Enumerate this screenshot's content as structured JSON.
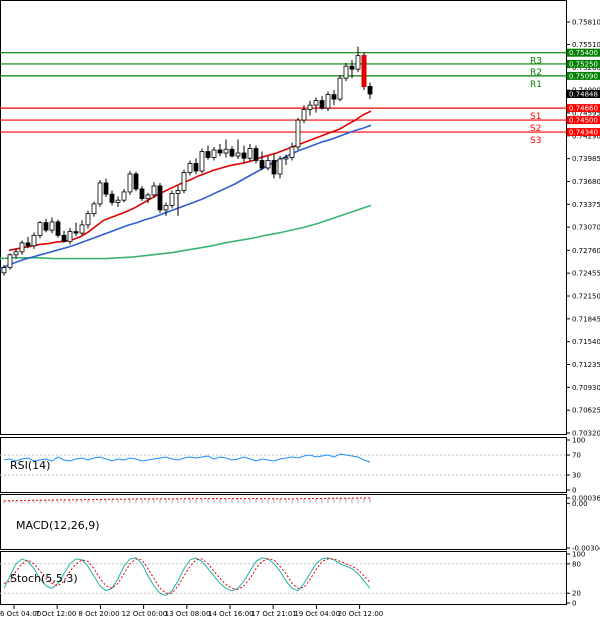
{
  "chart_data": [
    {
      "type": "candlestick",
      "panel": "price",
      "ylim": [
        0.7032,
        0.7581
      ],
      "y_ticks": [
        "0.75810",
        "0.75510",
        "0.75200",
        "0.74900",
        "0.74595",
        "0.74290",
        "0.73985",
        "0.73680",
        "0.73375",
        "0.73070",
        "0.72760",
        "0.72455",
        "0.72150",
        "0.71845",
        "0.71540",
        "0.71235",
        "0.70930",
        "0.70625",
        "0.70320"
      ],
      "levels": [
        {
          "name": "R3",
          "value": 0.754,
          "tag": "0.75400",
          "color": "#008000"
        },
        {
          "name": "R2",
          "value": 0.7525,
          "tag": "0.75250",
          "color": "#008000"
        },
        {
          "name": "R1",
          "value": 0.7509,
          "tag": "0.75090",
          "color": "#008000"
        },
        {
          "name": "S1",
          "value": 0.7466,
          "tag": "0.74660",
          "color": "#ff0000"
        },
        {
          "name": "S2",
          "value": 0.745,
          "tag": "0.74500",
          "color": "#ff0000"
        },
        {
          "name": "S3",
          "value": 0.7434,
          "tag": "0.74340",
          "color": "#ff0000"
        }
      ],
      "current_price": {
        "value": 0.74848,
        "tag": "0.74848"
      },
      "candles": [
        [
          0.7246,
          0.7256,
          0.7242,
          0.7253
        ],
        [
          0.7253,
          0.7272,
          0.725,
          0.727
        ],
        [
          0.727,
          0.7278,
          0.7265,
          0.7274
        ],
        [
          0.7274,
          0.7289,
          0.727,
          0.7286
        ],
        [
          0.7286,
          0.7294,
          0.7279,
          0.7282
        ],
        [
          0.7282,
          0.73,
          0.7278,
          0.7296
        ],
        [
          0.7296,
          0.7315,
          0.7292,
          0.7313
        ],
        [
          0.7313,
          0.7318,
          0.73,
          0.7303
        ],
        [
          0.7303,
          0.732,
          0.7299,
          0.7314
        ],
        [
          0.7314,
          0.7317,
          0.7293,
          0.7296
        ],
        [
          0.7296,
          0.7302,
          0.7286,
          0.7288
        ],
        [
          0.7288,
          0.7306,
          0.7284,
          0.7301
        ],
        [
          0.7301,
          0.7313,
          0.7295,
          0.7299
        ],
        [
          0.7299,
          0.7316,
          0.7296,
          0.731
        ],
        [
          0.731,
          0.7329,
          0.7305,
          0.7325
        ],
        [
          0.7325,
          0.7341,
          0.7321,
          0.7338
        ],
        [
          0.7338,
          0.737,
          0.7334,
          0.7366
        ],
        [
          0.7366,
          0.7372,
          0.7347,
          0.7351
        ],
        [
          0.7351,
          0.7356,
          0.7336,
          0.734
        ],
        [
          0.734,
          0.7348,
          0.7334,
          0.7343
        ],
        [
          0.7343,
          0.7358,
          0.734,
          0.7354
        ],
        [
          0.7354,
          0.7382,
          0.735,
          0.7378
        ],
        [
          0.7378,
          0.7381,
          0.7355,
          0.7358
        ],
        [
          0.7358,
          0.7362,
          0.7342,
          0.7345
        ],
        [
          0.7345,
          0.7353,
          0.7339,
          0.735
        ],
        [
          0.735,
          0.7367,
          0.7346,
          0.7362
        ],
        [
          0.7362,
          0.7366,
          0.7326,
          0.733
        ],
        [
          0.733,
          0.734,
          0.7322,
          0.7336
        ],
        [
          0.7336,
          0.7356,
          0.7332,
          0.7352
        ],
        [
          0.7352,
          0.7362,
          0.7322,
          0.7356
        ],
        [
          0.7356,
          0.7384,
          0.7352,
          0.738
        ],
        [
          0.738,
          0.7396,
          0.7376,
          0.7392
        ],
        [
          0.7392,
          0.7399,
          0.7378,
          0.7382
        ],
        [
          0.7382,
          0.7412,
          0.7379,
          0.7408
        ],
        [
          0.7408,
          0.7416,
          0.7397,
          0.74
        ],
        [
          0.74,
          0.7414,
          0.7396,
          0.741
        ],
        [
          0.741,
          0.7418,
          0.7402,
          0.7406
        ],
        [
          0.7406,
          0.7424,
          0.74,
          0.7411
        ],
        [
          0.7411,
          0.7415,
          0.74,
          0.7402
        ],
        [
          0.7402,
          0.7424,
          0.7398,
          0.7406
        ],
        [
          0.7406,
          0.7416,
          0.7393,
          0.7399
        ],
        [
          0.7399,
          0.7418,
          0.7395,
          0.7412
        ],
        [
          0.7412,
          0.7416,
          0.7392,
          0.7396
        ],
        [
          0.7396,
          0.7408,
          0.7383,
          0.7386
        ],
        [
          0.7386,
          0.7402,
          0.7383,
          0.7396
        ],
        [
          0.7396,
          0.7404,
          0.7372,
          0.7378
        ],
        [
          0.7378,
          0.7402,
          0.7372,
          0.7398
        ],
        [
          0.7398,
          0.7404,
          0.739,
          0.74
        ],
        [
          0.74,
          0.742,
          0.7396,
          0.7414
        ],
        [
          0.7414,
          0.7453,
          0.741,
          0.745
        ],
        [
          0.745,
          0.747,
          0.7446,
          0.7464
        ],
        [
          0.7464,
          0.7476,
          0.7456,
          0.747
        ],
        [
          0.747,
          0.748,
          0.746,
          0.7476
        ],
        [
          0.7476,
          0.7482,
          0.7464,
          0.7466
        ],
        [
          0.7466,
          0.7488,
          0.7462,
          0.7484
        ],
        [
          0.7484,
          0.749,
          0.747,
          0.7478
        ],
        [
          0.7478,
          0.751,
          0.7475,
          0.7506
        ],
        [
          0.7506,
          0.7526,
          0.7502,
          0.7522
        ],
        [
          0.7522,
          0.753,
          0.7506,
          0.7518
        ],
        [
          0.7518,
          0.7548,
          0.7514,
          0.7536
        ],
        [
          0.7536,
          0.754,
          0.749,
          0.7495
        ],
        [
          0.7495,
          0.75,
          0.7478,
          0.74848
        ]
      ],
      "ma_red": [
        0.7276,
        0.7278,
        0.728,
        0.7282,
        0.7284,
        0.7285,
        0.7287,
        0.7288,
        0.729,
        0.7294,
        0.73,
        0.7308,
        0.7316,
        0.732,
        0.7324,
        0.7328,
        0.7333,
        0.7339,
        0.7345,
        0.7351,
        0.7356,
        0.7361,
        0.7366,
        0.737,
        0.7375,
        0.7379,
        0.7383,
        0.7386,
        0.7389,
        0.7391,
        0.7393,
        0.7396,
        0.74,
        0.7403,
        0.7406,
        0.741,
        0.7414,
        0.7418,
        0.7422,
        0.7426,
        0.743,
        0.7434,
        0.7438,
        0.7444,
        0.745,
        0.7457,
        0.7462
      ],
      "ma_red_start": 1,
      "ma_blue": [
        0.7251,
        0.7256,
        0.726,
        0.7264,
        0.7267,
        0.727,
        0.7273,
        0.7276,
        0.7279,
        0.7282,
        0.7286,
        0.729,
        0.7294,
        0.7298,
        0.7302,
        0.7306,
        0.731,
        0.7313,
        0.7317,
        0.732,
        0.7324,
        0.7328,
        0.7332,
        0.7336,
        0.734,
        0.7344,
        0.7349,
        0.7354,
        0.7359,
        0.7364,
        0.737,
        0.7376,
        0.7382,
        0.7388,
        0.7394,
        0.7399,
        0.7404,
        0.7409,
        0.7413,
        0.7417,
        0.7421,
        0.7424,
        0.7428,
        0.7432,
        0.7436,
        0.7439,
        0.7443
      ],
      "ma_blue_start": 1,
      "ma_green": [
        0.7265,
        0.7266,
        0.7266,
        0.7266,
        0.7265,
        0.7265,
        0.7265,
        0.7265,
        0.7265,
        0.7266,
        0.7267,
        0.7269,
        0.7271,
        0.7273,
        0.7276,
        0.7279,
        0.7282,
        0.7286,
        0.7289,
        0.7292,
        0.7296,
        0.7299,
        0.7303,
        0.7307,
        0.7312,
        0.7318,
        0.7324,
        0.733,
        0.7336
      ],
      "ma_green_start": 1
    },
    {
      "type": "line",
      "panel": "rsi",
      "label": "RSI(14)",
      "ylim": [
        0,
        100
      ],
      "y_ticks": [
        "100",
        "70",
        "30",
        "0"
      ],
      "values": [
        60,
        62,
        58,
        62,
        64,
        58,
        60,
        62,
        58,
        66,
        60,
        58,
        62,
        64,
        60,
        64,
        66,
        62,
        58,
        62,
        60,
        64,
        62,
        58,
        60,
        62,
        64,
        66,
        62,
        60,
        64,
        66,
        64,
        66,
        68,
        62,
        66,
        64,
        60,
        62,
        66,
        62,
        58,
        62,
        60,
        58,
        62,
        64,
        66,
        64,
        68,
        70,
        66,
        68,
        70,
        66,
        72,
        70,
        68,
        66,
        60,
        56
      ]
    },
    {
      "type": "bar",
      "panel": "macd",
      "label": "MACD(12,26,9)",
      "ylim": [
        -0.003046,
        0.000361
      ],
      "y_ticks": [
        "0.000361",
        "0.00",
        "-0.003046"
      ],
      "values": [
        0.00018,
        0.00019,
        0.0002,
        0.00021,
        0.00022,
        0.00022,
        0.00023,
        0.00024,
        0.00024,
        0.00024,
        0.00024,
        0.00025,
        0.00026,
        0.00026,
        0.00027,
        0.00027,
        0.00028,
        0.00029,
        0.00029,
        0.0003,
        0.0003,
        0.00031,
        0.00031,
        0.00031,
        0.00031,
        0.00032,
        0.00031,
        0.00031,
        0.00031,
        0.00032,
        0.00032,
        0.00033,
        0.00032,
        0.00033,
        0.00033,
        0.00033,
        0.00033,
        0.00033,
        0.00033,
        0.00033,
        0.00032,
        0.00032,
        0.00032,
        0.00031,
        0.00031,
        0.00031,
        0.0003,
        0.0003,
        0.00031,
        0.00032,
        0.00033,
        0.00034,
        0.00034,
        0.00034,
        0.00035,
        0.00035,
        0.00036,
        0.00036,
        0.00036,
        0.00036,
        0.00036,
        0.00035
      ],
      "signal": [
        0.00016,
        0.00017,
        0.00018,
        0.00019,
        0.0002,
        0.00021,
        0.00021,
        0.00022,
        0.00022,
        0.00023,
        0.00023,
        0.00023,
        0.00024,
        0.00024,
        0.00025,
        0.00025,
        0.00026,
        0.00027,
        0.00027,
        0.00028,
        0.00028,
        0.00029,
        0.00029,
        0.0003,
        0.0003,
        0.0003,
        0.0003,
        0.0003,
        0.0003,
        0.0003,
        0.00031,
        0.00031,
        0.00031,
        0.00032,
        0.00032,
        0.00032,
        0.00032,
        0.00032,
        0.00032,
        0.00032,
        0.00032,
        0.00032,
        0.00032,
        0.00031,
        0.00031,
        0.00031,
        0.0003,
        0.0003,
        0.0003,
        0.00031,
        0.00032,
        0.00032,
        0.00033,
        0.00033,
        0.00034,
        0.00034,
        0.00035,
        0.00035,
        0.00035,
        0.00036,
        0.00036,
        0.00036
      ]
    },
    {
      "type": "line",
      "panel": "stoch",
      "label": "Stoch(5,5,3)",
      "ylim": [
        0,
        100
      ],
      "y_ticks": [
        "100",
        "80",
        "20",
        "0"
      ],
      "main": [
        30,
        55,
        80,
        90,
        85,
        70,
        50,
        35,
        30,
        40,
        60,
        80,
        90,
        88,
        75,
        55,
        35,
        25,
        30,
        50,
        75,
        90,
        92,
        80,
        55,
        35,
        20,
        15,
        25,
        45,
        70,
        88,
        92,
        85,
        70,
        55,
        40,
        30,
        25,
        30,
        45,
        65,
        85,
        92,
        90,
        80,
        65,
        45,
        30,
        25,
        40,
        60,
        80,
        90,
        92,
        88,
        80,
        75,
        70,
        60,
        45,
        30
      ],
      "signal": [
        40,
        45,
        65,
        80,
        88,
        80,
        65,
        50,
        40,
        35,
        45,
        65,
        80,
        88,
        85,
        70,
        50,
        35,
        30,
        40,
        60,
        80,
        90,
        88,
        70,
        50,
        30,
        20,
        20,
        35,
        55,
        75,
        88,
        90,
        80,
        65,
        50,
        38,
        30,
        28,
        35,
        50,
        70,
        85,
        90,
        88,
        75,
        60,
        40,
        30,
        32,
        48,
        68,
        85,
        90,
        90,
        85,
        80,
        75,
        68,
        55,
        42
      ]
    },
    {
      "type": "axis",
      "panel": "time",
      "x_ticks": [
        "6 Oct 04:00",
        "7 Oct 12:00",
        "8 Oct 20:00",
        "12 Oct 00:00",
        "13 Oct 08:00",
        "14 Oct 16:00",
        "17 Oct 21:01",
        "19 Oct 04:00",
        "20 Oct 12:00"
      ]
    }
  ]
}
